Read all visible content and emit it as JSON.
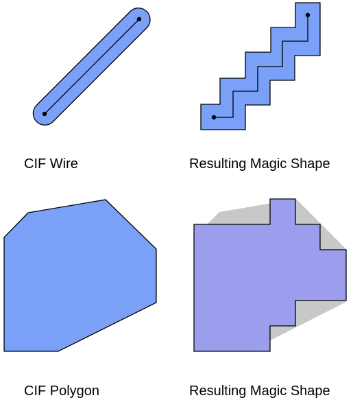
{
  "captions": {
    "cif_wire": "CIF Wire",
    "wire_result": "Resulting Magic Shape",
    "cif_polygon": "CIF Polygon",
    "polygon_result": "Resulting Magic Shape"
  },
  "colors": {
    "shape_fill": "#7aa0f7",
    "magic_fill": "#9a9ced",
    "original_shadow": "#c8c8c8",
    "outline": "#000000",
    "background": "#ffffff"
  }
}
